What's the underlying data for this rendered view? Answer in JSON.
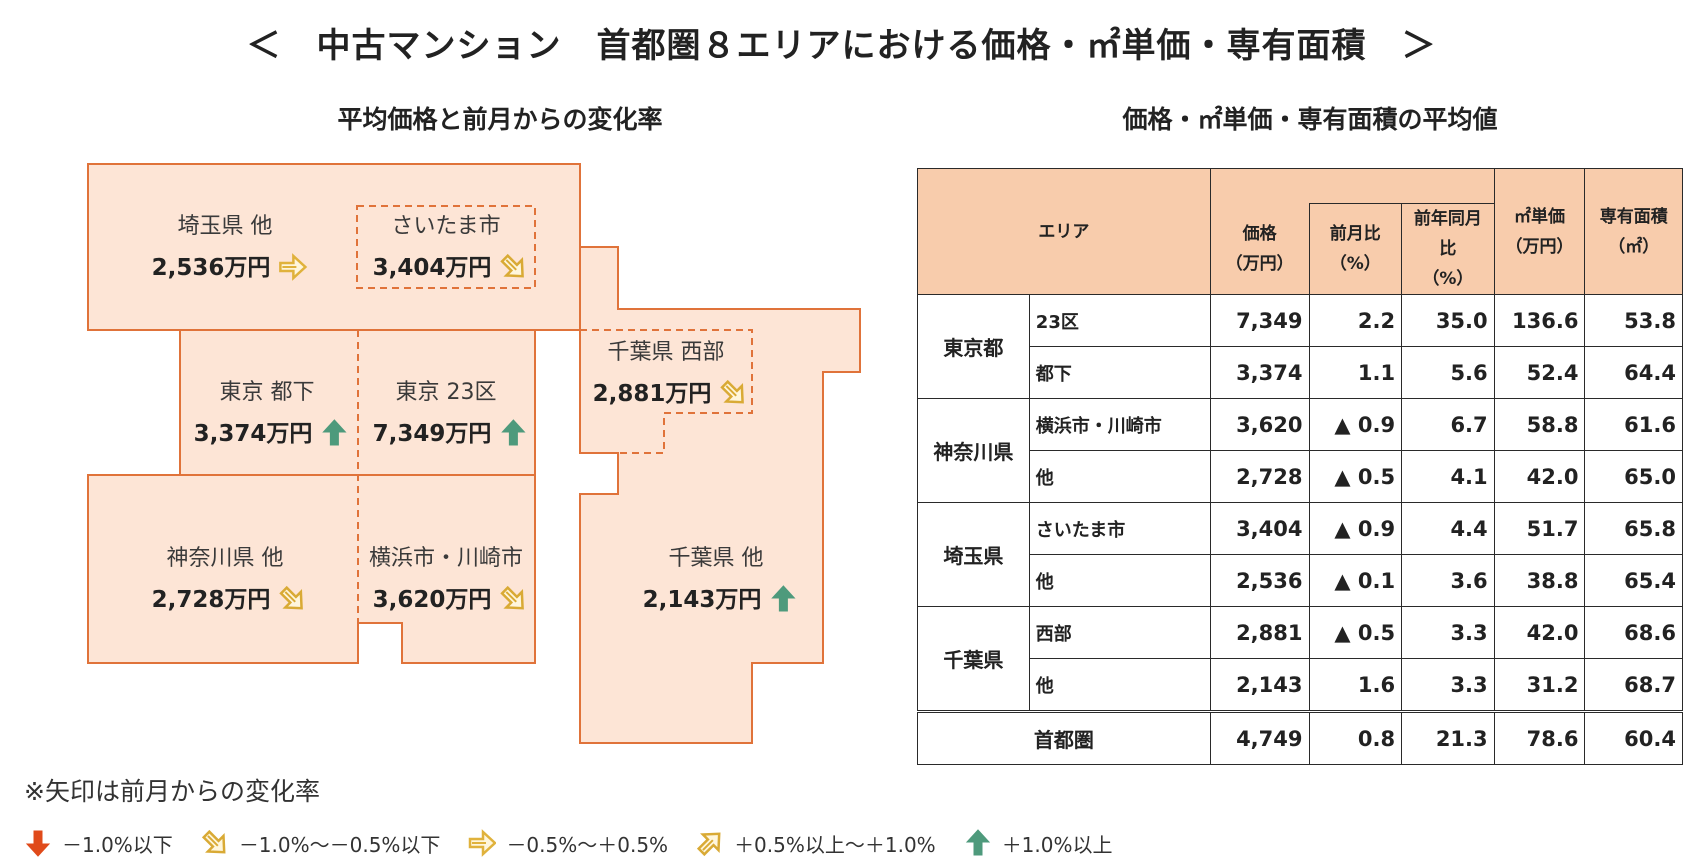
{
  "title": "＜　中古マンション　首都圏８エリアにおける価格・㎡単価・専有面積　＞",
  "map_title": "平均価格と前月からの変化率",
  "table_title": "価格・㎡単価・専有面積の平均値",
  "colors": {
    "region_fill": "#fde5d6",
    "region_border": "#e0733a",
    "table_header": "#f8ccac",
    "arrow_strong_down": "#e04a1a",
    "arrow_down": "#d9aa35",
    "arrow_flat": "#e0b23c",
    "arrow_up": "#d9aa35",
    "arrow_strong_up": "#4e9a7c"
  },
  "map": {
    "areas": [
      {
        "name": "埼玉県 他",
        "price": "2,536万円",
        "arrow": "flat"
      },
      {
        "name": "さいたま市",
        "price": "3,404万円",
        "arrow": "down"
      },
      {
        "name": "東京 都下",
        "price": "3,374万円",
        "arrow": "strong-up"
      },
      {
        "name": "東京 23区",
        "price": "7,349万円",
        "arrow": "strong-up"
      },
      {
        "name": "千葉県 西部",
        "price": "2,881万円",
        "arrow": "down"
      },
      {
        "name": "神奈川県 他",
        "price": "2,728万円",
        "arrow": "down"
      },
      {
        "name": "横浜市・川崎市",
        "price": "3,620万円",
        "arrow": "down"
      },
      {
        "name": "千葉県 他",
        "price": "2,143万円",
        "arrow": "strong-up"
      }
    ]
  },
  "table": {
    "headers": {
      "area": "エリア",
      "price": "価格",
      "price_unit": "（万円）",
      "mom": "前月比",
      "mom_unit": "（%）",
      "yoy": "前年同月比",
      "yoy_unit": "（%）",
      "sqm_price": "㎡単価",
      "sqm_price_unit": "（万円）",
      "floor_area": "専有面積",
      "floor_area_unit": "（㎡）"
    },
    "groups": [
      {
        "name": "東京都",
        "rows": [
          {
            "sub": "23区",
            "price": "7,349",
            "mom": "2.2",
            "yoy": "35.0",
            "sqm": "136.6",
            "area": "53.8"
          },
          {
            "sub": "都下",
            "price": "3,374",
            "mom": "1.1",
            "yoy": "5.6",
            "sqm": "52.4",
            "area": "64.4"
          }
        ]
      },
      {
        "name": "神奈川県",
        "rows": [
          {
            "sub": "横浜市・川崎市",
            "price": "3,620",
            "mom": "▲ 0.9",
            "yoy": "6.7",
            "sqm": "58.8",
            "area": "61.6"
          },
          {
            "sub": "他",
            "price": "2,728",
            "mom": "▲ 0.5",
            "yoy": "4.1",
            "sqm": "42.0",
            "area": "65.0"
          }
        ]
      },
      {
        "name": "埼玉県",
        "rows": [
          {
            "sub": "さいたま市",
            "price": "3,404",
            "mom": "▲ 0.9",
            "yoy": "4.4",
            "sqm": "51.7",
            "area": "65.8"
          },
          {
            "sub": "他",
            "price": "2,536",
            "mom": "▲ 0.1",
            "yoy": "3.6",
            "sqm": "38.8",
            "area": "65.4"
          }
        ]
      },
      {
        "name": "千葉県",
        "rows": [
          {
            "sub": "西部",
            "price": "2,881",
            "mom": "▲ 0.5",
            "yoy": "3.3",
            "sqm": "42.0",
            "area": "68.6"
          },
          {
            "sub": "他",
            "price": "2,143",
            "mom": "1.6",
            "yoy": "3.3",
            "sqm": "31.2",
            "area": "68.7"
          }
        ]
      }
    ],
    "total": {
      "name": "首都圏",
      "price": "4,749",
      "mom": "0.8",
      "yoy": "21.3",
      "sqm": "78.6",
      "area": "60.4"
    }
  },
  "chart_data": {
    "type": "table",
    "title": "価格・㎡単価・専有面積の平均値",
    "columns": [
      "エリア",
      "価格（万円）",
      "前月比（%）",
      "前年同月比（%）",
      "㎡単価（万円）",
      "専有面積（㎡）"
    ],
    "rows": [
      [
        "東京都 23区",
        7349,
        2.2,
        35.0,
        136.6,
        53.8
      ],
      [
        "東京都 都下",
        3374,
        1.1,
        5.6,
        52.4,
        64.4
      ],
      [
        "神奈川県 横浜市・川崎市",
        3620,
        -0.9,
        6.7,
        58.8,
        61.6
      ],
      [
        "神奈川県 他",
        2728,
        -0.5,
        4.1,
        42.0,
        65.0
      ],
      [
        "埼玉県 さいたま市",
        3404,
        -0.9,
        4.4,
        51.7,
        65.8
      ],
      [
        "埼玉県 他",
        2536,
        -0.1,
        3.6,
        38.8,
        65.4
      ],
      [
        "千葉県 西部",
        2881,
        -0.5,
        3.3,
        42.0,
        68.6
      ],
      [
        "千葉県 他",
        2143,
        1.6,
        3.3,
        31.2,
        68.7
      ],
      [
        "首都圏",
        4749,
        0.8,
        21.3,
        78.6,
        60.4
      ]
    ]
  },
  "note": "※矢印は前月からの変化率",
  "legend": [
    {
      "arrow": "strong-down",
      "label": "－1.0%以下"
    },
    {
      "arrow": "down",
      "label": "－1.0%～－0.5%以下"
    },
    {
      "arrow": "flat",
      "label": "－0.5%～＋0.5%"
    },
    {
      "arrow": "up",
      "label": "＋0.5%以上～＋1.0%"
    },
    {
      "arrow": "strong-up",
      "label": "＋1.0%以上"
    }
  ]
}
